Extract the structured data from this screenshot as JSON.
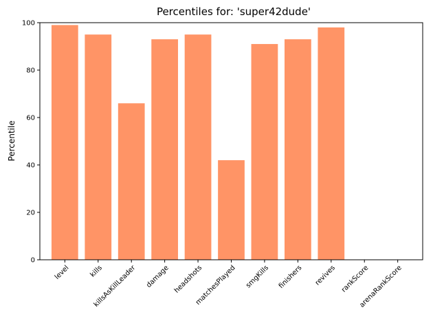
{
  "chart_data": {
    "type": "bar",
    "title": "Percentiles for: 'super42dude'",
    "xlabel": "",
    "ylabel": "Percentile",
    "ylim": [
      0,
      100
    ],
    "yticks": [
      0,
      20,
      40,
      60,
      80,
      100
    ],
    "categories": [
      "level",
      "kills",
      "killsAsKillLeader",
      "damage",
      "headshots",
      "matchesPlayed",
      "smgKills",
      "finishers",
      "revives",
      "rankScore",
      "arenaRankScore"
    ],
    "values": [
      99,
      95,
      66,
      93,
      95,
      42,
      91,
      93,
      98,
      0,
      0
    ],
    "bar_color": "#ff9466",
    "grid": false,
    "legend": "none"
  }
}
